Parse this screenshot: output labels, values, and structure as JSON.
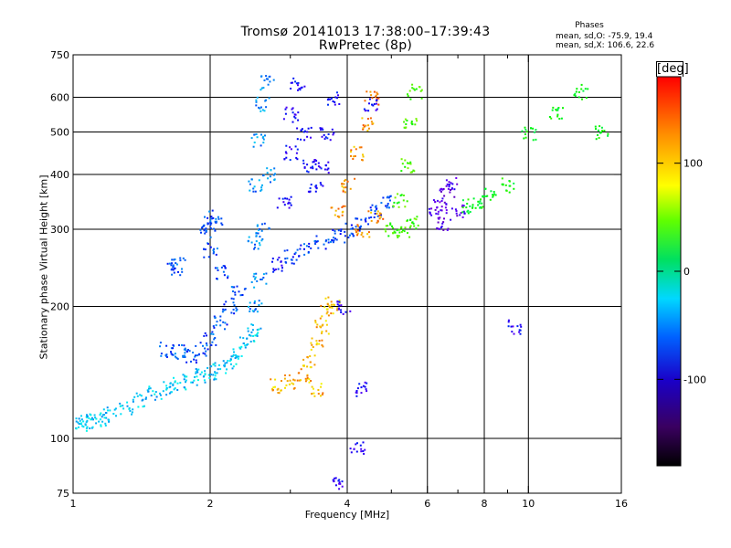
{
  "header": {
    "title_line1": "Tromsø 20141013 17:38:00–17:39:43",
    "title_line2": "RwPretec (8p)",
    "phases_label": "Phases",
    "stat_O": "mean, sd,O: -75.9, 19.4",
    "stat_X": "mean, sd,X: 106.6, 22.6"
  },
  "colorbar": {
    "unit": "[deg]",
    "ticks": [
      {
        "value": 100,
        "label": "100"
      },
      {
        "value": 0,
        "label": "0"
      },
      {
        "value": -100,
        "label": "-100"
      }
    ],
    "range": [
      -180,
      180
    ]
  },
  "chart_data": {
    "type": "scatter",
    "title": "Tromsø 20141013 17:38:00–17:39:43",
    "subtitle": "RwPretec (8p)",
    "xlabel": "Frequency [MHz]",
    "ylabel": "Stationary phase Virtual Height [km]",
    "x_scale": "log",
    "y_scale": "log",
    "xlim": [
      1,
      16
    ],
    "ylim": [
      75,
      750
    ],
    "x_ticks": [
      {
        "value": 1,
        "label": "1"
      },
      {
        "value": 2,
        "label": "2"
      },
      {
        "value": 4,
        "label": "4"
      },
      {
        "value": 6,
        "label": "6"
      },
      {
        "value": 8,
        "label": "8"
      },
      {
        "value": 10,
        "label": "10"
      },
      {
        "value": 16,
        "label": "16"
      }
    ],
    "x_grid": [
      2,
      4,
      6,
      8,
      10
    ],
    "x_minor": [
      3,
      5,
      7,
      9
    ],
    "y_ticks": [
      {
        "value": 75,
        "label": "75"
      },
      {
        "value": 100,
        "label": "100"
      },
      {
        "value": 200,
        "label": "200"
      },
      {
        "value": 300,
        "label": "300"
      },
      {
        "value": 400,
        "label": "400"
      },
      {
        "value": 500,
        "label": "500"
      },
      {
        "value": 600,
        "label": "600"
      },
      {
        "value": 750,
        "label": "750"
      }
    ],
    "y_grid": [
      100,
      200,
      300,
      400,
      500,
      600
    ],
    "grid": true,
    "color_scale": "phase in degrees, rainbow from black (-180) to red (180)",
    "series": [
      {
        "points": [
          [
            1.0,
            108
          ],
          [
            1.03,
            108
          ],
          [
            1.07,
            109
          ],
          [
            1.1,
            110
          ],
          [
            1.15,
            111
          ],
          [
            1.2,
            114
          ],
          [
            1.3,
            118
          ],
          [
            1.4,
            123
          ],
          [
            1.5,
            127
          ],
          [
            1.6,
            130
          ],
          [
            1.7,
            133
          ],
          [
            1.8,
            137
          ],
          [
            1.9,
            140
          ],
          [
            2.0,
            142
          ],
          [
            2.1,
            145
          ],
          [
            2.2,
            150
          ],
          [
            2.3,
            158
          ],
          [
            2.4,
            167
          ],
          [
            2.5,
            178
          ]
        ],
        "phase": -35
      },
      {
        "points": [
          [
            1.6,
            160
          ],
          [
            1.7,
            158
          ],
          [
            1.8,
            155
          ],
          [
            1.9,
            160
          ],
          [
            2.0,
            170
          ],
          [
            2.1,
            185
          ],
          [
            2.2,
            200
          ],
          [
            2.3,
            215
          ],
          [
            2.1,
            240
          ],
          [
            2.0,
            270
          ],
          [
            1.95,
            300
          ],
          [
            1.65,
            245
          ],
          [
            1.7,
            250
          ],
          [
            2.0,
            310
          ],
          [
            2.05,
            320
          ]
        ],
        "phase": -70
      },
      {
        "points": [
          [
            2.5,
            200
          ],
          [
            2.5,
            280
          ],
          [
            2.5,
            380
          ],
          [
            2.55,
            480
          ],
          [
            2.6,
            580
          ],
          [
            2.65,
            650
          ],
          [
            2.7,
            400
          ],
          [
            2.6,
            300
          ],
          [
            2.55,
            230
          ]
        ],
        "phase": -55
      },
      {
        "points": [
          [
            2.8,
            250
          ],
          [
            2.9,
            350
          ],
          [
            3.0,
            450
          ],
          [
            3.0,
            550
          ],
          [
            3.1,
            650
          ],
          [
            3.2,
            500
          ],
          [
            3.3,
            420
          ],
          [
            3.4,
            380
          ],
          [
            3.5,
            420
          ],
          [
            3.6,
            500
          ],
          [
            3.7,
            600
          ]
        ],
        "phase": -95
      },
      {
        "points": [
          [
            3.0,
            260
          ],
          [
            3.2,
            270
          ],
          [
            3.5,
            280
          ],
          [
            3.8,
            290
          ],
          [
            4.0,
            300
          ],
          [
            4.3,
            310
          ],
          [
            4.6,
            330
          ],
          [
            4.9,
            350
          ]
        ],
        "phase": -75
      },
      {
        "points": [
          [
            3.2,
            140
          ],
          [
            3.3,
            150
          ],
          [
            3.4,
            165
          ],
          [
            3.5,
            180
          ],
          [
            3.6,
            195
          ],
          [
            3.7,
            205
          ],
          [
            3.4,
            130
          ],
          [
            3.0,
            135
          ],
          [
            2.8,
            132
          ]
        ],
        "phase": 130
      },
      {
        "points": [
          [
            3.8,
            330
          ],
          [
            4.0,
            380
          ],
          [
            4.2,
            450
          ],
          [
            4.4,
            520
          ],
          [
            4.5,
            600
          ],
          [
            4.3,
            300
          ],
          [
            4.6,
            320
          ]
        ],
        "phase": 140
      },
      {
        "points": [
          [
            5.0,
            300
          ],
          [
            5.2,
            350
          ],
          [
            5.4,
            420
          ],
          [
            5.5,
            520
          ],
          [
            5.6,
            620
          ],
          [
            5.3,
            300
          ],
          [
            5.5,
            310
          ]
        ],
        "phase": 60
      },
      {
        "points": [
          [
            6.2,
            330
          ],
          [
            6.4,
            340
          ],
          [
            6.6,
            360
          ],
          [
            6.8,
            380
          ],
          [
            7.0,
            330
          ],
          [
            6.5,
            310
          ]
        ],
        "phase": -120
      },
      {
        "points": [
          [
            7.3,
            340
          ],
          [
            7.8,
            350
          ],
          [
            8.2,
            360
          ],
          [
            9.0,
            380
          ],
          [
            10.0,
            500
          ],
          [
            11.5,
            550
          ],
          [
            13.0,
            620
          ],
          [
            14.5,
            500
          ]
        ],
        "phase": 40
      },
      {
        "points": [
          [
            4.2,
            95
          ],
          [
            4.3,
            130
          ],
          [
            3.8,
            80
          ],
          [
            4.5,
            580
          ],
          [
            3.9,
            200
          ],
          [
            9.3,
            180
          ]
        ],
        "phase": -100
      }
    ]
  }
}
